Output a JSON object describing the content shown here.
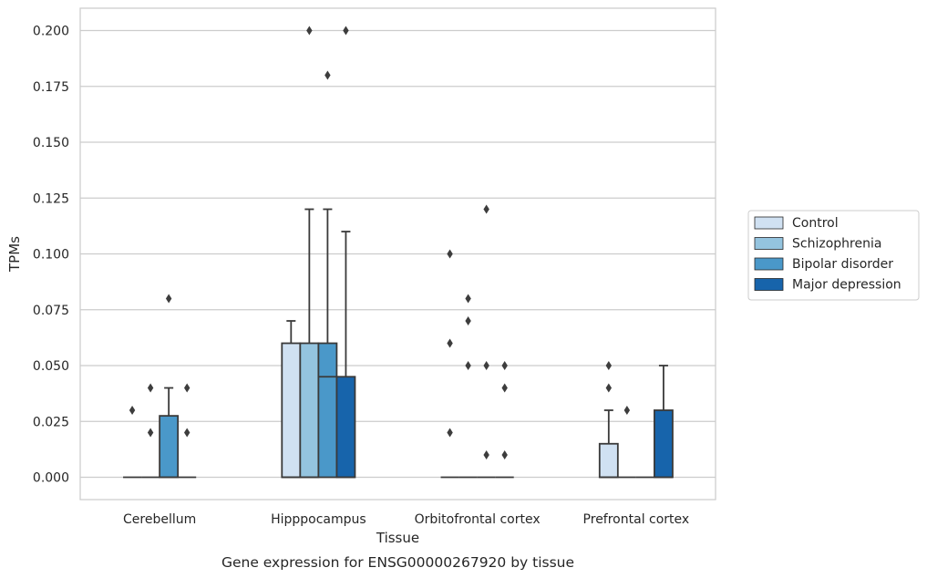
{
  "chart_data": {
    "type": "boxplot",
    "title": "Gene expression for ENSG00000267920 by tissue",
    "xlabel": "Tissue",
    "ylabel": "TPMs",
    "ylim": [
      -0.01,
      0.21
    ],
    "yticks": [
      "0.000",
      "0.025",
      "0.050",
      "0.075",
      "0.100",
      "0.125",
      "0.150",
      "0.175",
      "0.200"
    ],
    "ytick_values": [
      0,
      0.025,
      0.05,
      0.075,
      0.1,
      0.125,
      0.15,
      0.175,
      0.2
    ],
    "grid": true,
    "legend_position": "right",
    "categories": [
      "Cerebellum",
      "Hipppocampus",
      "Orbitofrontal cortex",
      "Prefrontal cortex"
    ],
    "series": [
      {
        "name": "Control",
        "color": "#d0e1f2",
        "boxes": [
          {
            "whislo": 0,
            "q1": 0,
            "med": 0,
            "q3": 0,
            "whishi": 0,
            "fliers": [
              0.03
            ]
          },
          {
            "whislo": 0,
            "q1": 0,
            "med": 0,
            "q3": 0.06,
            "whishi": 0.07,
            "fliers": []
          },
          {
            "whislo": 0,
            "q1": 0,
            "med": 0,
            "q3": 0,
            "whishi": 0,
            "fliers": [
              0.02,
              0.06,
              0.1
            ]
          },
          {
            "whislo": 0,
            "q1": 0,
            "med": 0,
            "q3": 0.015,
            "whishi": 0.03,
            "fliers": [
              0.04,
              0.05
            ]
          }
        ]
      },
      {
        "name": "Schizophrenia",
        "color": "#94c4df",
        "boxes": [
          {
            "whislo": 0,
            "q1": 0,
            "med": 0,
            "q3": 0,
            "whishi": 0,
            "fliers": [
              0.02,
              0.04
            ]
          },
          {
            "whislo": 0,
            "q1": 0,
            "med": 0,
            "q3": 0.06,
            "whishi": 0.12,
            "fliers": [
              0.2
            ]
          },
          {
            "whislo": 0,
            "q1": 0,
            "med": 0,
            "q3": 0,
            "whishi": 0,
            "fliers": [
              0.05,
              0.07,
              0.08
            ]
          },
          {
            "whislo": 0,
            "q1": 0,
            "med": 0,
            "q3": 0,
            "whishi": 0,
            "fliers": [
              0.03
            ]
          }
        ]
      },
      {
        "name": "Bipolar disorder",
        "color": "#4a98c9",
        "boxes": [
          {
            "whislo": 0,
            "q1": 0,
            "med": 0,
            "q3": 0.0275,
            "whishi": 0.04,
            "fliers": [
              0.08
            ]
          },
          {
            "whislo": 0,
            "q1": 0,
            "med": 0.045,
            "q3": 0.06,
            "whishi": 0.12,
            "fliers": [
              0.18
            ]
          },
          {
            "whislo": 0,
            "q1": 0,
            "med": 0,
            "q3": 0,
            "whishi": 0,
            "fliers": [
              0.01,
              0.05,
              0.12
            ]
          },
          {
            "whislo": 0,
            "q1": 0,
            "med": 0,
            "q3": 0,
            "whishi": 0,
            "fliers": []
          }
        ]
      },
      {
        "name": "Major depression",
        "color": "#1764ab",
        "boxes": [
          {
            "whislo": 0,
            "q1": 0,
            "med": 0,
            "q3": 0,
            "whishi": 0,
            "fliers": [
              0.02,
              0.04
            ]
          },
          {
            "whislo": 0,
            "q1": 0,
            "med": 0,
            "q3": 0.045,
            "whishi": 0.11,
            "fliers": [
              0.2
            ]
          },
          {
            "whislo": 0,
            "q1": 0,
            "med": 0,
            "q3": 0,
            "whishi": 0,
            "fliers": [
              0.01,
              0.04,
              0.05
            ]
          },
          {
            "whislo": 0,
            "q1": 0,
            "med": 0,
            "q3": 0.03,
            "whishi": 0.05,
            "fliers": []
          }
        ]
      }
    ],
    "colors": {
      "edge": "#3a3a3a",
      "grid": "#cccccc",
      "frame": "#cccccc"
    }
  }
}
